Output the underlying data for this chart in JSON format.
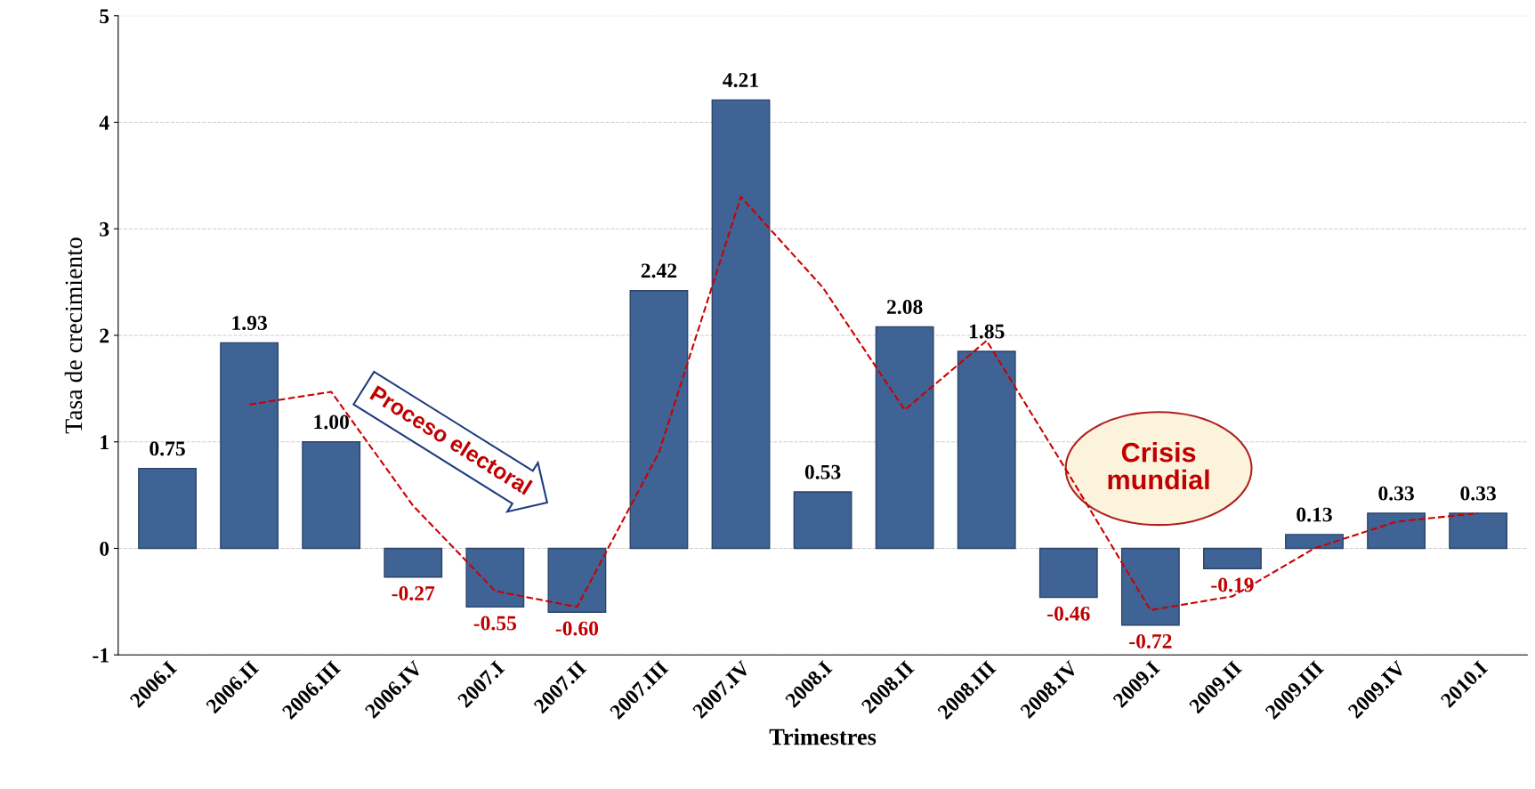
{
  "chart_data": {
    "type": "bar",
    "xlabel": "Trimestres",
    "ylabel": "Tasa de crecimiento",
    "categories": [
      "2006.I",
      "2006.II",
      "2006.III",
      "2006.IV",
      "2007.I",
      "2007.II",
      "2007.III",
      "2007.IV",
      "2008.I",
      "2008.II",
      "2008.III",
      "2008.IV",
      "2009.I",
      "2009.II",
      "2009.III",
      "2009.IV",
      "2010.I"
    ],
    "series": [
      {
        "color": "#3f6394",
        "values": [
          0.75,
          1.93,
          1.0,
          -0.27,
          -0.55,
          -0.6,
          2.42,
          4.21,
          0.53,
          2.08,
          1.85,
          -0.46,
          -0.72,
          -0.19,
          0.13,
          0.33,
          0.33
        ],
        "value_labels": [
          "0.75",
          "1.93",
          "1.00",
          "-0.27",
          "-0.55",
          "-0.60",
          "2.42",
          "4.21",
          "0.53",
          "2.08",
          "1.85",
          "-0.46",
          "-0.72",
          "-0.19",
          "0.13",
          "0.33",
          "0.33"
        ]
      },
      {
        "type": "line",
        "color": "#cc0000",
        "line_style": "dashed",
        "values": [
          null,
          1.35,
          1.47,
          0.4,
          -0.4,
          -0.55,
          0.9,
          3.3,
          2.45,
          1.3,
          1.95,
          0.7,
          -0.58,
          -0.45,
          0.0,
          0.25,
          0.33
        ]
      }
    ],
    "ylim": [
      -1,
      5
    ],
    "yticks": [
      -1,
      0,
      1,
      2,
      3,
      4,
      5
    ],
    "grid": "y",
    "annotations": [
      "Proceso electoral",
      "Crisis mundial"
    ]
  }
}
